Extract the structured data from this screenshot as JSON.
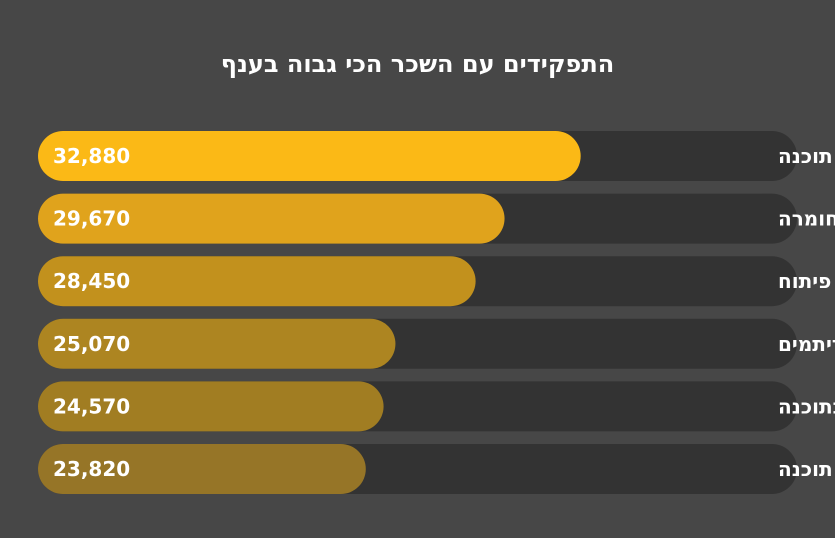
{
  "chart_data": {
    "type": "bar",
    "orientation": "horizontal",
    "title": "התפקידים עם השכר הכי גבוה בענף",
    "categories": [
      "ארכיטקט תוכנה",
      "ארכיטקט מערכות חומרה",
      "ראש צוות פיתוח",
      "פיתוח אלגוריתמים",
      "ניהול מוצר בתוכנה",
      "מהנדס/ת מערכת תוכנה"
    ],
    "values": [
      32880,
      29670,
      28450,
      25070,
      24570,
      23820
    ],
    "value_labels": [
      "32,880",
      "29,670",
      "28,450",
      "25,070",
      "24,570",
      "23,820"
    ],
    "bar_colors": [
      "#fbb916",
      "#e0a31c",
      "#c2911d",
      "#ad8521",
      "#a17d22",
      "#967527"
    ],
    "track_color": "#333333",
    "xlim": [
      10000,
      42000
    ],
    "grid": false
  }
}
